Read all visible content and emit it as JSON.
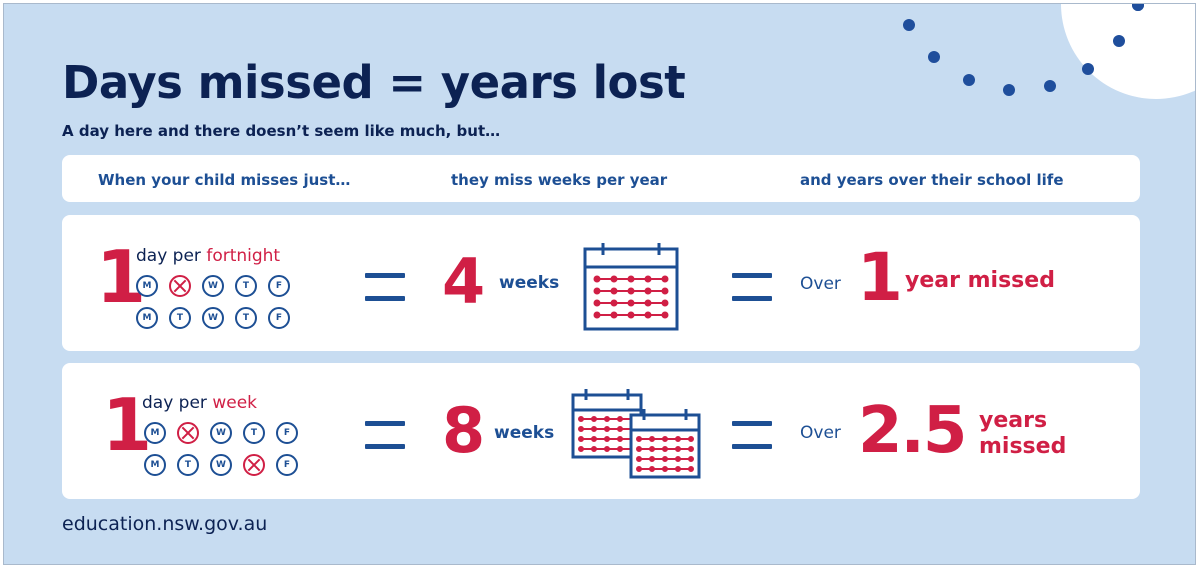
{
  "title": "Days missed = years lost",
  "subtitle": "A day here and there doesn’t seem like much, but…",
  "columns": {
    "col1": "When your child misses just…",
    "col2": "they miss weeks per year",
    "col3": "and years over their school life"
  },
  "rows": [
    {
      "count": "1",
      "freq_prefix": "day per ",
      "freq_highlight": "fortnight",
      "week1_days": [
        "M",
        "T",
        "W",
        "T",
        "F"
      ],
      "week2_days": [
        "M",
        "T",
        "W",
        "T",
        "F"
      ],
      "missed_days_note": "Tuesday of week 1",
      "weeks_value": "4",
      "weeks_unit": "weeks",
      "over_label": "Over",
      "years_value": "1",
      "years_label": "year missed"
    },
    {
      "count": "1",
      "freq_prefix": "day per ",
      "freq_highlight": "week",
      "week1_days": [
        "M",
        "T",
        "W",
        "T",
        "F"
      ],
      "week2_days": [
        "M",
        "T",
        "W",
        "T",
        "F"
      ],
      "missed_days_note": "Tuesday of week 1, Thursday of week 2",
      "weeks_value": "8",
      "weeks_unit": "weeks",
      "over_label": "Over",
      "years_value": "2.5",
      "years_label_line1": "years",
      "years_label_line2": "missed"
    }
  ],
  "footer": "education.nsw.gov.au",
  "colors": {
    "background": "#c7dcf1",
    "navy": "#0c2253",
    "blue": "#1d4f94",
    "red": "#d01f45"
  },
  "icons": [
    "calendar-icon",
    "equals-icon",
    "crossed-day-icon",
    "dotted-arc-decoration"
  ]
}
